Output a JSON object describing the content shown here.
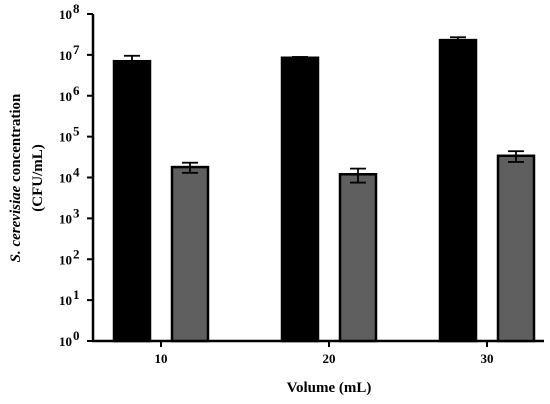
{
  "chart_data": {
    "type": "bar",
    "categories": [
      "10",
      "20",
      "30"
    ],
    "series": [
      {
        "values": [
          7000000,
          8500000,
          23000000
        ],
        "errors": [
          2500000,
          400000,
          4000000
        ],
        "color": "#000000"
      },
      {
        "values": [
          18000,
          12000,
          34000
        ],
        "errors": [
          5000,
          4500,
          10000
        ],
        "color": "#5f5f5f"
      }
    ],
    "scale": "log",
    "ylim": [
      1,
      100000000
    ],
    "yticks": [
      {
        "base": "10",
        "exp": "0"
      },
      {
        "base": "10",
        "exp": "1"
      },
      {
        "base": "10",
        "exp": "2"
      },
      {
        "base": "10",
        "exp": "3"
      },
      {
        "base": "10",
        "exp": "4"
      },
      {
        "base": "10",
        "exp": "5"
      },
      {
        "base": "10",
        "exp": "6"
      },
      {
        "base": "10",
        "exp": "7"
      },
      {
        "base": "10",
        "exp": "8"
      }
    ],
    "xlabel": "Volume (mL)",
    "ylabel_italic": "S. cerevisiae",
    "ylabel_rest": " concentration",
    "ylabel_unit": "(CFU/mL)",
    "grid": false
  }
}
